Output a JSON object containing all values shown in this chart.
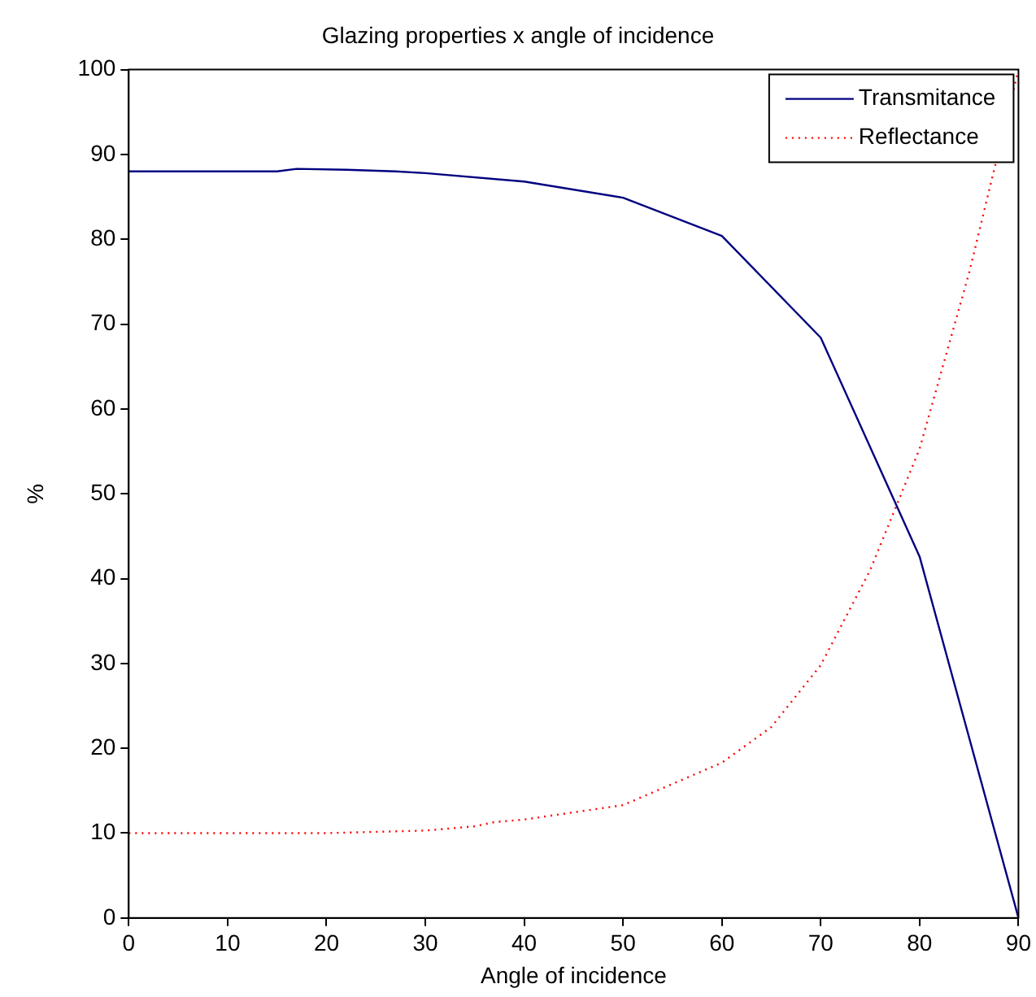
{
  "chart_data": {
    "type": "line",
    "title": "Glazing properties x angle of incidence",
    "xlabel": "Angle of incidence",
    "ylabel": "%",
    "xlim": [
      0,
      90
    ],
    "xticks": [
      0,
      10,
      20,
      30,
      40,
      50,
      60,
      70,
      80,
      90
    ],
    "ylim": [
      0,
      100
    ],
    "yticks": [
      0,
      10,
      20,
      30,
      40,
      50,
      60,
      70,
      80,
      90,
      100
    ],
    "grid": false,
    "legend": "top right",
    "marker": "none",
    "series": [
      {
        "name": "Transmitance",
        "color": "#000080",
        "line_style": "solid",
        "x": [
          0,
          10,
          15,
          17,
          22,
          27,
          30,
          40,
          50,
          60,
          70,
          80,
          90
        ],
        "values": [
          88,
          88,
          88,
          88.3,
          88.2,
          88,
          87.8,
          86.8,
          84.9,
          80.4,
          68.4,
          42.6,
          0
        ]
      },
      {
        "name": "Reflectance",
        "color": "#ff0000",
        "line_style": "dotted",
        "x": [
          0,
          10,
          20,
          30,
          35,
          37,
          40,
          50,
          60,
          65,
          70,
          75,
          80,
          85,
          90
        ],
        "values": [
          10,
          10,
          10,
          10.3,
          10.8,
          11.3,
          11.6,
          13.3,
          18.3,
          22.5,
          29.8,
          41,
          55.3,
          76,
          100
        ]
      }
    ]
  }
}
